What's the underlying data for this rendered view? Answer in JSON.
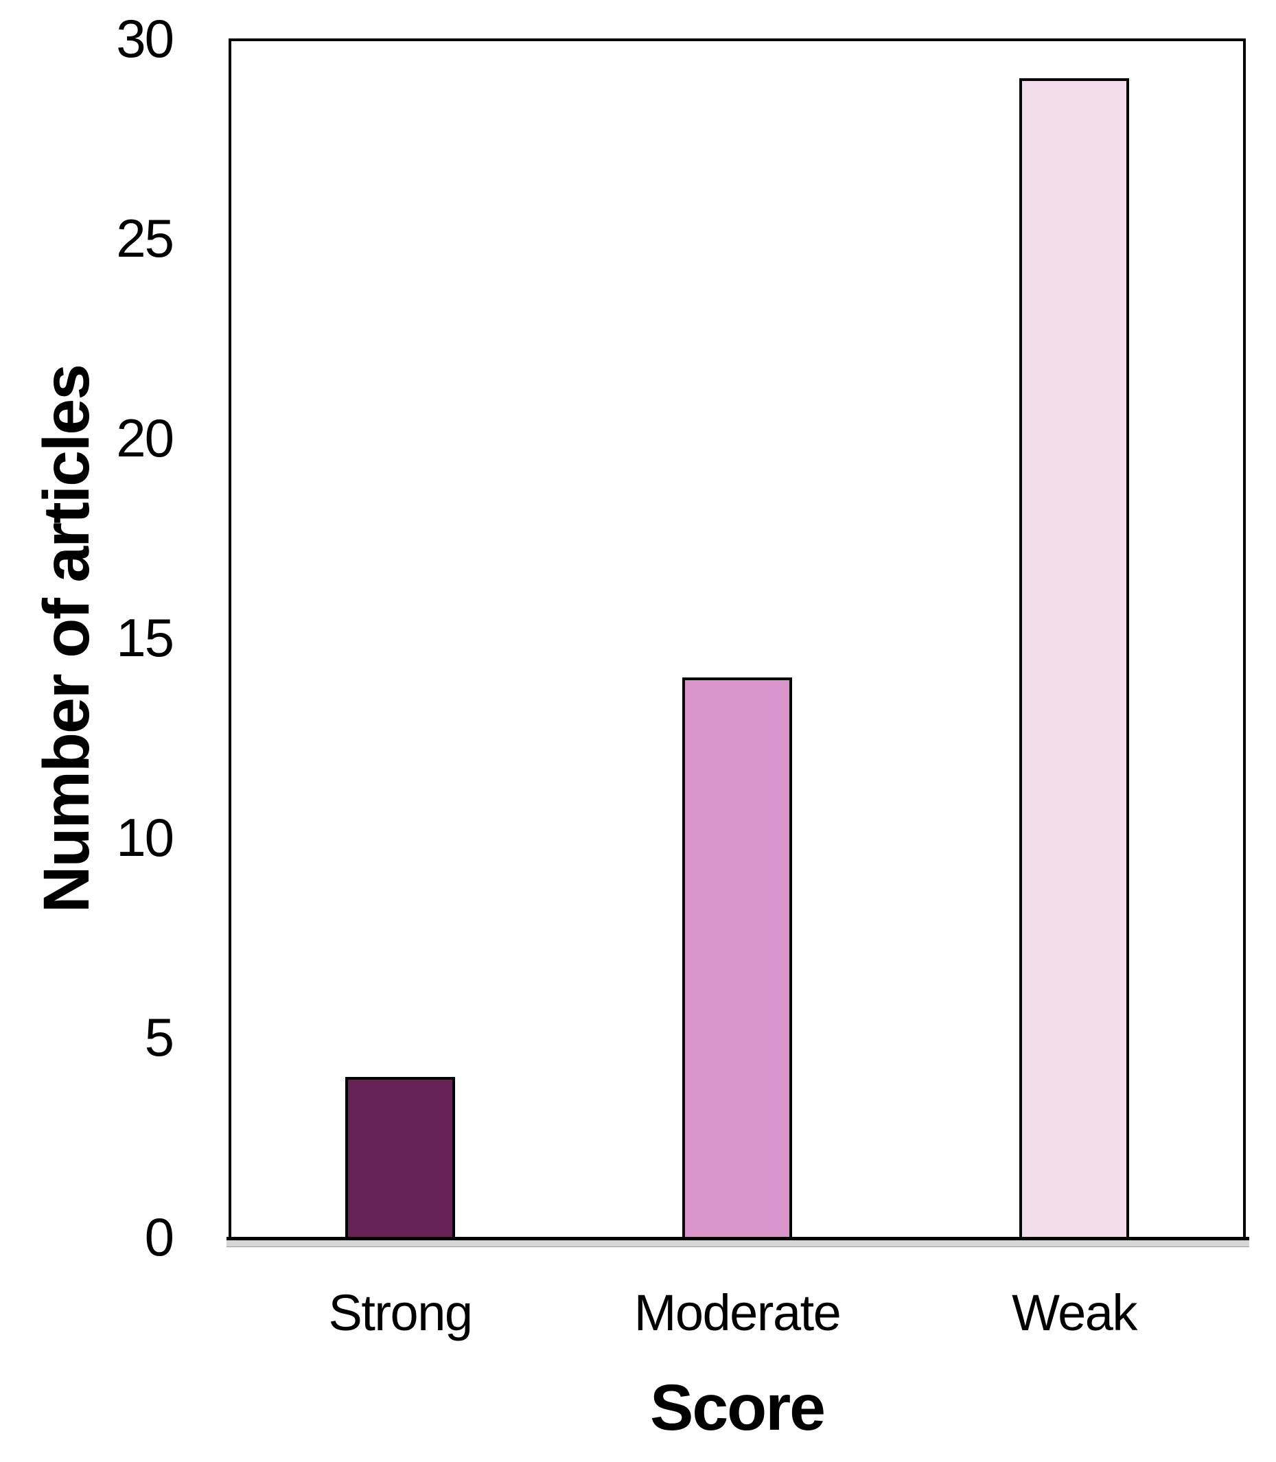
{
  "chart_data": {
    "type": "bar",
    "categories": [
      "Strong",
      "Moderate",
      "Weak"
    ],
    "values": [
      4,
      14,
      29
    ],
    "title": "",
    "xlabel": "Score",
    "ylabel": "Number of articles",
    "ylim": [
      0,
      30
    ],
    "yticks": [
      0,
      5,
      10,
      15,
      20,
      25,
      30
    ],
    "grid": false,
    "legend": false,
    "bar_colors": [
      "#662257",
      "#D994CC",
      "#F2DCEC"
    ],
    "bar_border_color": "#000000",
    "axis_color": "#000000",
    "axis_shadow_color": "#D6D6D6",
    "background": "#FFFFFF"
  }
}
